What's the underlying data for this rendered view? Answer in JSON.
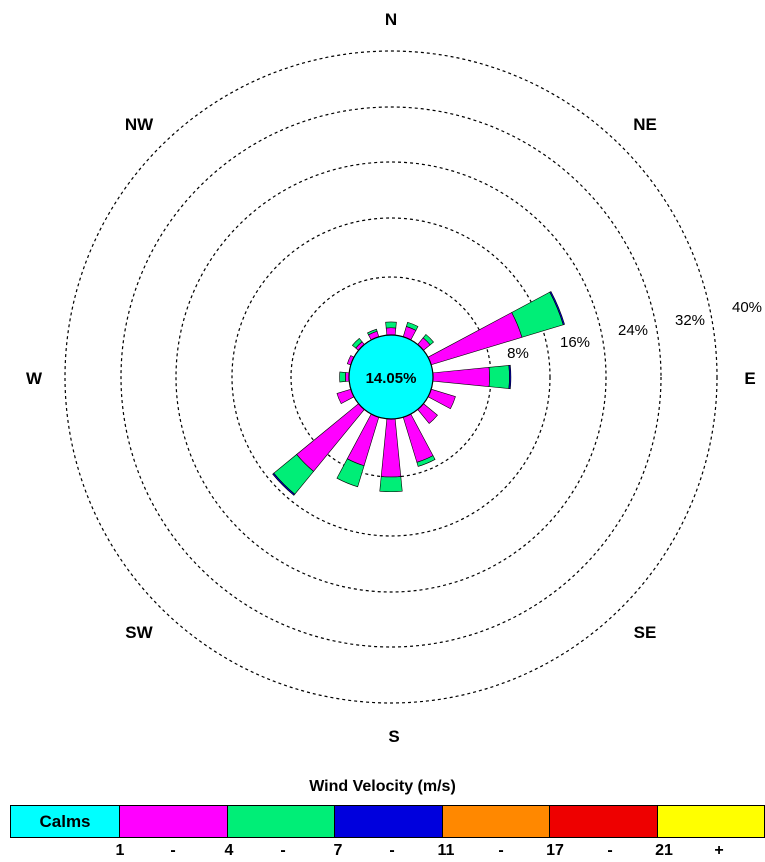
{
  "chart_data": {
    "type": "wind-rose",
    "directions": [
      "N",
      "NNE",
      "NE",
      "ENE",
      "E",
      "ESE",
      "SE",
      "SSE",
      "S",
      "SSW",
      "SW",
      "WSW",
      "W",
      "WNW",
      "NW",
      "NNW"
    ],
    "compass_labels": [
      "N",
      "NE",
      "E",
      "SE",
      "S",
      "SW",
      "W",
      "NW"
    ],
    "rings": [
      "8%",
      "16%",
      "24%",
      "32%",
      "40%"
    ],
    "ring_values": [
      8,
      16,
      24,
      32,
      40
    ],
    "calms_label": "14.05%",
    "calms_percent": 14.05,
    "speed_bins": [
      {
        "range": "1 - 4",
        "color": "#ff00ff"
      },
      {
        "range": "4 - 7",
        "color": "#00ee77"
      },
      {
        "range": "7 - 11",
        "color": "#0000dd"
      },
      {
        "range": "11 - 17",
        "color": "#ff8800"
      },
      {
        "range": "17 - 21",
        "color": "#ee0000"
      },
      {
        "range": "21 +",
        "color": "#ffff00"
      }
    ],
    "frequencies_percent": [
      [
        1.0,
        0.8,
        0.0,
        0,
        0,
        0
      ],
      [
        1.5,
        0.6,
        0.0,
        0,
        0,
        0
      ],
      [
        1.2,
        0.6,
        0.0,
        0,
        0,
        0
      ],
      [
        13.0,
        6.0,
        0.2,
        0,
        0,
        0
      ],
      [
        7.8,
        2.7,
        0.2,
        0,
        0,
        0
      ],
      [
        3.5,
        0.0,
        0.0,
        0,
        0,
        0
      ],
      [
        2.5,
        0.0,
        0.0,
        0,
        0,
        0
      ],
      [
        6.5,
        0.6,
        0.0,
        0,
        0,
        0
      ],
      [
        8.0,
        2.0,
        0.0,
        0,
        0,
        0
      ],
      [
        7.0,
        3.0,
        0.0,
        0,
        0,
        0
      ],
      [
        11.0,
        4.0,
        0.2,
        0,
        0,
        0
      ],
      [
        2.0,
        0.0,
        0.0,
        0,
        0,
        0
      ],
      [
        0.5,
        0.8,
        0.0,
        0,
        0,
        0
      ],
      [
        0.5,
        0.0,
        0.0,
        0,
        0,
        0
      ],
      [
        0.5,
        0.6,
        0.0,
        0,
        0,
        0
      ],
      [
        0.8,
        0.3,
        0.0,
        0,
        0,
        0
      ]
    ]
  },
  "legend": {
    "title": "Wind Velocity (m/s)",
    "calms": "Calms",
    "calms_color": "#00ffff",
    "colors": [
      "#ff00ff",
      "#00ee77",
      "#0000dd",
      "#ff8800",
      "#ee0000",
      "#ffff00"
    ],
    "ticks": [
      "1",
      "-",
      "4",
      "-",
      "7",
      "-",
      "11",
      "-",
      "17",
      "-",
      "21",
      "+"
    ]
  }
}
